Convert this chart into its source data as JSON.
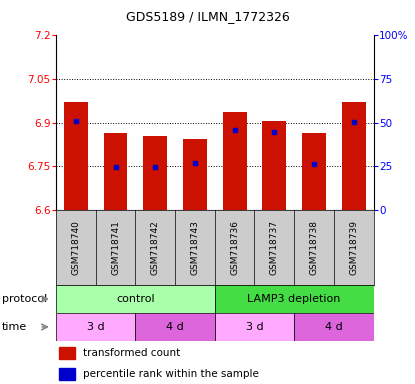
{
  "title": "GDS5189 / ILMN_1772326",
  "samples": [
    "GSM718740",
    "GSM718741",
    "GSM718742",
    "GSM718743",
    "GSM718736",
    "GSM718737",
    "GSM718738",
    "GSM718739"
  ],
  "bar_values": [
    6.97,
    6.865,
    6.855,
    6.845,
    6.935,
    6.905,
    6.865,
    6.97
  ],
  "percentile_values": [
    6.905,
    6.748,
    6.748,
    6.762,
    6.876,
    6.868,
    6.757,
    6.903
  ],
  "ylim": [
    6.6,
    7.2
  ],
  "yticks_left": [
    6.6,
    6.75,
    6.9,
    7.05,
    7.2
  ],
  "yticks_right_vals": [
    0,
    25,
    50,
    75,
    100
  ],
  "bar_color": "#cc1100",
  "percentile_color": "#0000cc",
  "protocol_control_color": "#aaffaa",
  "protocol_lamp3_color": "#44dd44",
  "time_3d_color": "#ffaaff",
  "time_4d_color": "#dd66dd",
  "grid_yticks": [
    6.75,
    6.9,
    7.05
  ],
  "bar_width": 0.6,
  "time_labels": [
    "3 d",
    "4 d",
    "3 d",
    "4 d"
  ],
  "sample_bg_color": "#cccccc",
  "title_fontsize": 9,
  "tick_fontsize": 7.5,
  "label_fontsize": 8,
  "legend_fontsize": 7.5
}
